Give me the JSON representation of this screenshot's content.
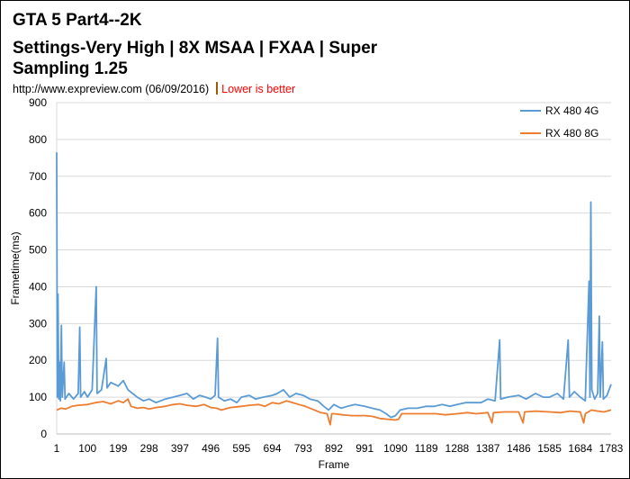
{
  "chart_data": {
    "type": "line",
    "title_lines": [
      "GTA 5 Part4--2K",
      "Settings-Very High | 8X MSAA | FXAA | Super",
      "Sampling 1.25"
    ],
    "source": "http://www.expreview.com (06/09/2016)",
    "note": "Lower is better",
    "xlabel": "Frame",
    "ylabel": "Frametime(ms)",
    "xlim": [
      1,
      1783
    ],
    "ylim": [
      0,
      900
    ],
    "x_ticks": [
      1,
      100,
      199,
      298,
      397,
      496,
      595,
      694,
      793,
      892,
      991,
      1090,
      1189,
      1288,
      1387,
      1486,
      1585,
      1684,
      1783
    ],
    "y_ticks": [
      0,
      100,
      200,
      300,
      400,
      500,
      600,
      700,
      800,
      900
    ],
    "grid": true,
    "legend_position": "top-right",
    "series": [
      {
        "name": "RX 480 4G",
        "color": "#5b9bd5",
        "points": [
          [
            1,
            765
          ],
          [
            3,
            100
          ],
          [
            5,
            380
          ],
          [
            8,
            95
          ],
          [
            10,
            195
          ],
          [
            13,
            90
          ],
          [
            16,
            295
          ],
          [
            19,
            100
          ],
          [
            25,
            195
          ],
          [
            28,
            95
          ],
          [
            40,
            110
          ],
          [
            55,
            95
          ],
          [
            70,
            110
          ],
          [
            75,
            290
          ],
          [
            78,
            100
          ],
          [
            90,
            115
          ],
          [
            100,
            100
          ],
          [
            115,
            120
          ],
          [
            128,
            400
          ],
          [
            131,
            110
          ],
          [
            145,
            120
          ],
          [
            160,
            205
          ],
          [
            163,
            125
          ],
          [
            175,
            140
          ],
          [
            199,
            130
          ],
          [
            215,
            145
          ],
          [
            230,
            120
          ],
          [
            245,
            110
          ],
          [
            260,
            100
          ],
          [
            280,
            90
          ],
          [
            298,
            95
          ],
          [
            320,
            85
          ],
          [
            350,
            95
          ],
          [
            375,
            100
          ],
          [
            397,
            105
          ],
          [
            420,
            110
          ],
          [
            440,
            95
          ],
          [
            460,
            105
          ],
          [
            480,
            100
          ],
          [
            496,
            95
          ],
          [
            510,
            105
          ],
          [
            518,
            260
          ],
          [
            521,
            100
          ],
          [
            540,
            90
          ],
          [
            560,
            95
          ],
          [
            580,
            85
          ],
          [
            595,
            100
          ],
          [
            620,
            105
          ],
          [
            640,
            95
          ],
          [
            665,
            100
          ],
          [
            694,
            105
          ],
          [
            710,
            110
          ],
          [
            730,
            120
          ],
          [
            750,
            100
          ],
          [
            770,
            110
          ],
          [
            793,
            105
          ],
          [
            815,
            95
          ],
          [
            840,
            90
          ],
          [
            860,
            75
          ],
          [
            875,
            65
          ],
          [
            892,
            80
          ],
          [
            915,
            70
          ],
          [
            935,
            75
          ],
          [
            960,
            80
          ],
          [
            991,
            75
          ],
          [
            1015,
            70
          ],
          [
            1040,
            65
          ],
          [
            1060,
            55
          ],
          [
            1075,
            45
          ],
          [
            1090,
            50
          ],
          [
            1105,
            65
          ],
          [
            1130,
            70
          ],
          [
            1160,
            70
          ],
          [
            1189,
            75
          ],
          [
            1215,
            75
          ],
          [
            1240,
            80
          ],
          [
            1265,
            75
          ],
          [
            1288,
            80
          ],
          [
            1315,
            85
          ],
          [
            1340,
            85
          ],
          [
            1365,
            85
          ],
          [
            1387,
            95
          ],
          [
            1410,
            90
          ],
          [
            1425,
            255
          ],
          [
            1428,
            95
          ],
          [
            1450,
            100
          ],
          [
            1486,
            105
          ],
          [
            1510,
            95
          ],
          [
            1540,
            110
          ],
          [
            1565,
            100
          ],
          [
            1585,
            100
          ],
          [
            1610,
            110
          ],
          [
            1630,
            95
          ],
          [
            1645,
            255
          ],
          [
            1649,
            100
          ],
          [
            1665,
            115
          ],
          [
            1684,
            100
          ],
          [
            1700,
            90
          ],
          [
            1712,
            415
          ],
          [
            1715,
            100
          ],
          [
            1718,
            630
          ],
          [
            1721,
            120
          ],
          [
            1730,
            95
          ],
          [
            1740,
            110
          ],
          [
            1745,
            320
          ],
          [
            1748,
            100
          ],
          [
            1755,
            250
          ],
          [
            1758,
            95
          ],
          [
            1770,
            105
          ],
          [
            1783,
            135
          ]
        ]
      },
      {
        "name": "RX 480 8G",
        "color": "#ed7d31",
        "points": [
          [
            1,
            65
          ],
          [
            15,
            70
          ],
          [
            30,
            68
          ],
          [
            50,
            75
          ],
          [
            70,
            78
          ],
          [
            100,
            80
          ],
          [
            125,
            85
          ],
          [
            150,
            88
          ],
          [
            175,
            82
          ],
          [
            199,
            90
          ],
          [
            215,
            85
          ],
          [
            230,
            95
          ],
          [
            240,
            75
          ],
          [
            260,
            70
          ],
          [
            280,
            72
          ],
          [
            298,
            68
          ],
          [
            320,
            72
          ],
          [
            350,
            75
          ],
          [
            375,
            80
          ],
          [
            397,
            82
          ],
          [
            420,
            78
          ],
          [
            450,
            75
          ],
          [
            475,
            80
          ],
          [
            496,
            72
          ],
          [
            515,
            70
          ],
          [
            530,
            65
          ],
          [
            560,
            72
          ],
          [
            595,
            75
          ],
          [
            620,
            78
          ],
          [
            650,
            80
          ],
          [
            670,
            75
          ],
          [
            694,
            85
          ],
          [
            715,
            82
          ],
          [
            740,
            90
          ],
          [
            760,
            85
          ],
          [
            780,
            80
          ],
          [
            800,
            75
          ],
          [
            830,
            65
          ],
          [
            850,
            58
          ],
          [
            870,
            55
          ],
          [
            880,
            25
          ],
          [
            885,
            55
          ],
          [
            892,
            55
          ],
          [
            920,
            52
          ],
          [
            950,
            50
          ],
          [
            991,
            50
          ],
          [
            1015,
            48
          ],
          [
            1040,
            42
          ],
          [
            1065,
            40
          ],
          [
            1090,
            38
          ],
          [
            1100,
            40
          ],
          [
            1110,
            55
          ],
          [
            1140,
            55
          ],
          [
            1189,
            55
          ],
          [
            1220,
            55
          ],
          [
            1250,
            52
          ],
          [
            1288,
            55
          ],
          [
            1320,
            58
          ],
          [
            1350,
            55
          ],
          [
            1387,
            58
          ],
          [
            1400,
            30
          ],
          [
            1405,
            58
          ],
          [
            1440,
            60
          ],
          [
            1486,
            60
          ],
          [
            1500,
            30
          ],
          [
            1505,
            60
          ],
          [
            1540,
            62
          ],
          [
            1585,
            60
          ],
          [
            1620,
            58
          ],
          [
            1650,
            62
          ],
          [
            1684,
            60
          ],
          [
            1695,
            30
          ],
          [
            1700,
            55
          ],
          [
            1720,
            65
          ],
          [
            1740,
            62
          ],
          [
            1760,
            60
          ],
          [
            1783,
            65
          ]
        ]
      }
    ]
  }
}
